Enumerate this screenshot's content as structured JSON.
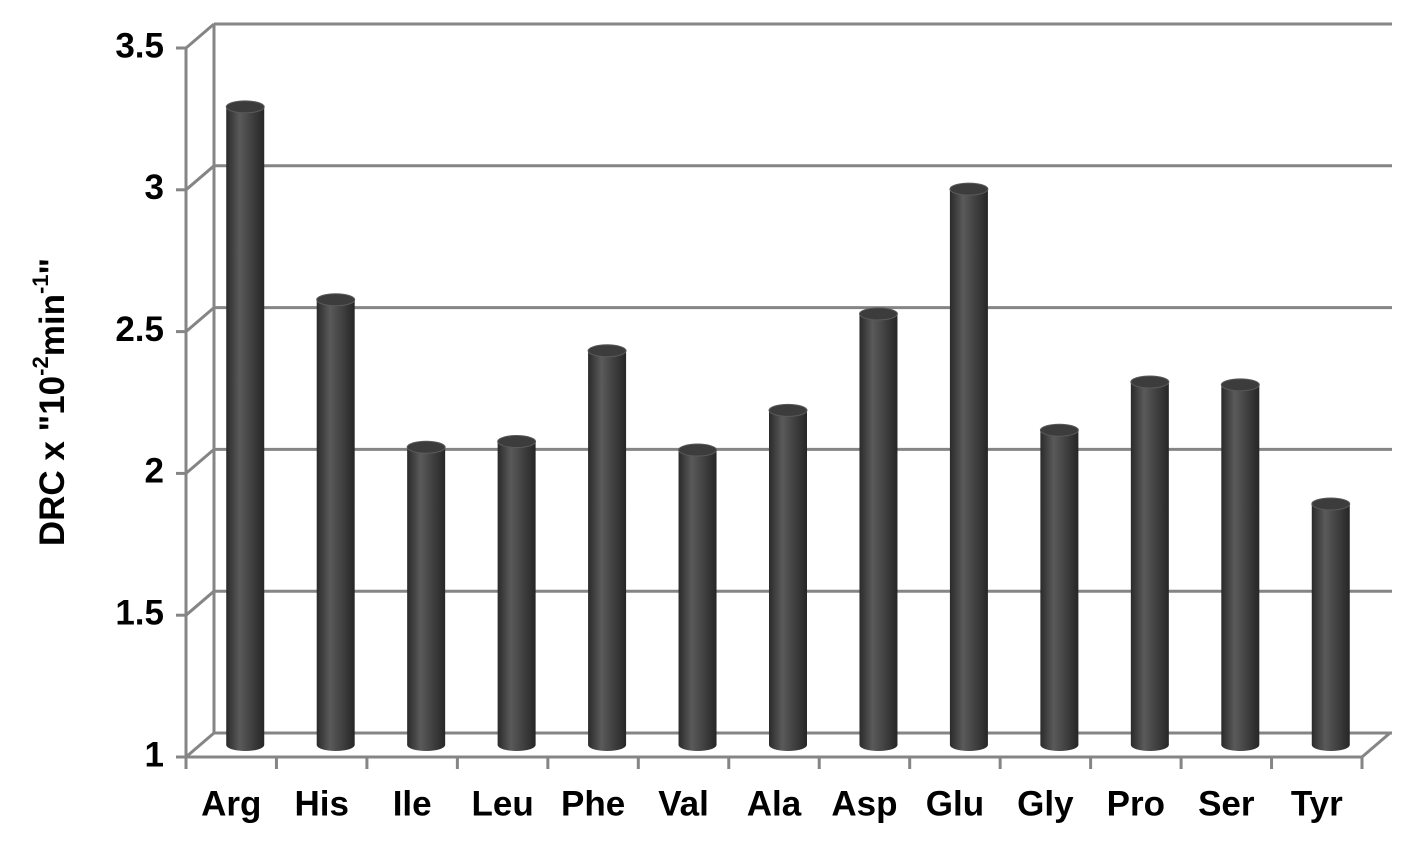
{
  "chart_data": {
    "type": "bar3d",
    "y_label": [
      {
        "text": "DRC x \"10"
      },
      {
        "text": "-2",
        "superscript": true
      },
      {
        "text": "min"
      },
      {
        "text": "-1",
        "superscript": true
      },
      {
        "text": "\""
      }
    ],
    "categories": [
      "Arg",
      "His",
      "Ile",
      "Leu",
      "Phe",
      "Val",
      "Ala",
      "Asp",
      "Glu",
      "Gly",
      "Pro",
      "Ser",
      "Tyr"
    ],
    "values": [
      3.25,
      2.57,
      2.05,
      2.07,
      2.39,
      2.04,
      2.18,
      2.52,
      2.96,
      2.11,
      2.28,
      2.27,
      1.85
    ],
    "color": "#3c3c3c",
    "ylim": [
      1,
      3.5
    ],
    "yticks": [
      1,
      1.5,
      2,
      2.5,
      3,
      3.5
    ],
    "grid": true
  }
}
